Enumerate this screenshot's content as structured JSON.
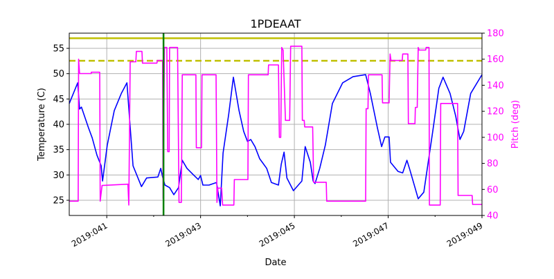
{
  "chart_data": {
    "type": "line",
    "title": "1PDEAAT",
    "xlabel": "Date",
    "ylabel": "Temperature (C)",
    "y2label": "Pitch (deg)",
    "xlim": [
      40.2,
      49.0
    ],
    "ylim": [
      22,
      58
    ],
    "y2lim": [
      40,
      180
    ],
    "grid": true,
    "xticks": [
      {
        "value": 41,
        "label": "2019:041"
      },
      {
        "value": 43,
        "label": "2019:043"
      },
      {
        "value": 45,
        "label": "2019:045"
      },
      {
        "value": 47,
        "label": "2019:047"
      },
      {
        "value": 49,
        "label": "2019:049"
      }
    ],
    "xminor": [
      42,
      44,
      46,
      48
    ],
    "yticks": [
      25,
      30,
      35,
      40,
      45,
      50,
      55
    ],
    "y2ticks": [
      40,
      60,
      80,
      100,
      120,
      140,
      160,
      180
    ],
    "colors": {
      "temperature": "#0000ff",
      "pitch": "#ff00ff",
      "limits": "#bfbf00",
      "marker": "#008000",
      "grid": "#b0b0b0"
    },
    "hlines": [
      {
        "y": 57.0,
        "style": "solid"
      },
      {
        "y": 52.55,
        "style": "dashed"
      }
    ],
    "vline": {
      "x": 42.21
    },
    "series": [
      {
        "axis": "left",
        "color": "#0000ff",
        "points": [
          [
            40.2,
            44.1
          ],
          [
            40.38,
            48.2
          ],
          [
            40.42,
            43.0
          ],
          [
            40.46,
            43.4
          ],
          [
            40.61,
            39.3
          ],
          [
            40.69,
            37.3
          ],
          [
            40.79,
            33.9
          ],
          [
            40.88,
            31.8
          ],
          [
            40.91,
            28.8
          ],
          [
            41.01,
            35.9
          ],
          [
            41.16,
            42.7
          ],
          [
            41.31,
            46.1
          ],
          [
            41.43,
            48.2
          ],
          [
            41.56,
            31.8
          ],
          [
            41.74,
            27.7
          ],
          [
            41.85,
            29.4
          ],
          [
            42.09,
            29.6
          ],
          [
            42.15,
            31.3
          ],
          [
            42.19,
            29.6
          ],
          [
            42.24,
            28.0
          ],
          [
            42.34,
            27.5
          ],
          [
            42.43,
            26.1
          ],
          [
            42.53,
            27.5
          ],
          [
            42.61,
            32.9
          ],
          [
            42.71,
            31.3
          ],
          [
            42.86,
            29.9
          ],
          [
            42.95,
            29.1
          ],
          [
            43.0,
            29.9
          ],
          [
            43.05,
            28.0
          ],
          [
            43.18,
            28.0
          ],
          [
            43.34,
            28.5
          ],
          [
            43.42,
            23.9
          ],
          [
            43.48,
            34.3
          ],
          [
            43.6,
            42.0
          ],
          [
            43.7,
            49.3
          ],
          [
            43.82,
            42.7
          ],
          [
            43.92,
            38.6
          ],
          [
            44.0,
            36.6
          ],
          [
            44.07,
            37.0
          ],
          [
            44.16,
            35.6
          ],
          [
            44.26,
            33.2
          ],
          [
            44.41,
            31.3
          ],
          [
            44.51,
            28.5
          ],
          [
            44.66,
            28.0
          ],
          [
            44.72,
            32.1
          ],
          [
            44.78,
            34.5
          ],
          [
            44.84,
            29.4
          ],
          [
            44.98,
            26.9
          ],
          [
            45.16,
            28.8
          ],
          [
            45.23,
            35.6
          ],
          [
            45.34,
            32.5
          ],
          [
            45.4,
            28.8
          ],
          [
            45.44,
            28.3
          ],
          [
            45.54,
            31.3
          ],
          [
            45.66,
            35.9
          ],
          [
            45.81,
            44.1
          ],
          [
            46.03,
            48.2
          ],
          [
            46.25,
            49.4
          ],
          [
            46.52,
            49.8
          ],
          [
            46.62,
            46.1
          ],
          [
            46.77,
            39.3
          ],
          [
            46.86,
            35.6
          ],
          [
            46.93,
            37.5
          ],
          [
            47.02,
            37.5
          ],
          [
            47.05,
            32.5
          ],
          [
            47.21,
            30.7
          ],
          [
            47.31,
            30.4
          ],
          [
            47.4,
            32.9
          ],
          [
            47.46,
            31.1
          ],
          [
            47.64,
            25.3
          ],
          [
            47.76,
            26.6
          ],
          [
            47.95,
            38.6
          ],
          [
            48.08,
            47.1
          ],
          [
            48.17,
            49.3
          ],
          [
            48.32,
            46.1
          ],
          [
            48.44,
            41.6
          ],
          [
            48.53,
            37.0
          ],
          [
            48.61,
            38.6
          ],
          [
            48.76,
            46.1
          ],
          [
            49.0,
            49.8
          ]
        ]
      },
      {
        "axis": "right",
        "color": "#ff00ff",
        "points": [
          [
            40.2,
            51
          ],
          [
            40.39,
            51
          ],
          [
            40.4,
            160
          ],
          [
            40.42,
            149
          ],
          [
            40.67,
            149
          ],
          [
            40.67,
            150
          ],
          [
            40.85,
            150
          ],
          [
            40.86,
            51
          ],
          [
            40.9,
            63
          ],
          [
            41.45,
            64
          ],
          [
            41.47,
            48
          ],
          [
            41.5,
            158
          ],
          [
            41.62,
            158
          ],
          [
            41.63,
            166
          ],
          [
            41.75,
            166
          ],
          [
            41.76,
            157
          ],
          [
            42.07,
            157
          ],
          [
            42.08,
            159
          ],
          [
            42.19,
            159
          ],
          [
            42.2,
            53
          ],
          [
            42.23,
            169
          ],
          [
            42.28,
            169
          ],
          [
            42.3,
            89
          ],
          [
            42.33,
            89
          ],
          [
            42.34,
            169
          ],
          [
            42.51,
            169
          ],
          [
            42.54,
            50
          ],
          [
            42.59,
            50
          ],
          [
            42.61,
            148
          ],
          [
            42.9,
            148
          ],
          [
            42.91,
            92
          ],
          [
            43.02,
            92
          ],
          [
            43.03,
            148
          ],
          [
            43.33,
            148
          ],
          [
            43.35,
            50
          ],
          [
            43.37,
            61
          ],
          [
            43.45,
            61
          ],
          [
            43.47,
            48
          ],
          [
            43.71,
            48
          ],
          [
            43.72,
            67.6
          ],
          [
            44.01,
            67.6
          ],
          [
            44.02,
            148
          ],
          [
            44.44,
            148
          ],
          [
            44.45,
            155.6
          ],
          [
            44.66,
            155.6
          ],
          [
            44.68,
            100
          ],
          [
            44.71,
            100
          ],
          [
            44.73,
            169
          ],
          [
            44.76,
            167
          ],
          [
            44.81,
            113
          ],
          [
            44.9,
            113
          ],
          [
            44.92,
            170
          ],
          [
            45.16,
            170
          ],
          [
            45.17,
            113
          ],
          [
            45.21,
            113
          ],
          [
            45.22,
            108
          ],
          [
            45.39,
            108
          ],
          [
            45.41,
            65.5
          ],
          [
            45.68,
            65.5
          ],
          [
            45.69,
            51
          ],
          [
            46.52,
            51
          ],
          [
            46.53,
            122
          ],
          [
            46.57,
            122
          ],
          [
            46.58,
            148
          ],
          [
            46.87,
            148
          ],
          [
            46.88,
            126.5
          ],
          [
            47.02,
            126.5
          ],
          [
            47.04,
            164
          ],
          [
            47.06,
            159
          ],
          [
            47.3,
            159
          ],
          [
            47.31,
            164
          ],
          [
            47.42,
            164
          ],
          [
            47.43,
            110.5
          ],
          [
            47.57,
            110.5
          ],
          [
            47.58,
            123
          ],
          [
            47.62,
            123
          ],
          [
            47.64,
            169
          ],
          [
            47.66,
            167
          ],
          [
            47.8,
            167
          ],
          [
            47.81,
            169
          ],
          [
            47.87,
            169
          ],
          [
            47.88,
            48
          ],
          [
            48.11,
            48
          ],
          [
            48.12,
            126
          ],
          [
            48.48,
            126
          ],
          [
            48.49,
            55.4
          ],
          [
            48.79,
            55.4
          ],
          [
            48.8,
            48.5
          ],
          [
            49.0,
            48.5
          ]
        ]
      }
    ]
  }
}
